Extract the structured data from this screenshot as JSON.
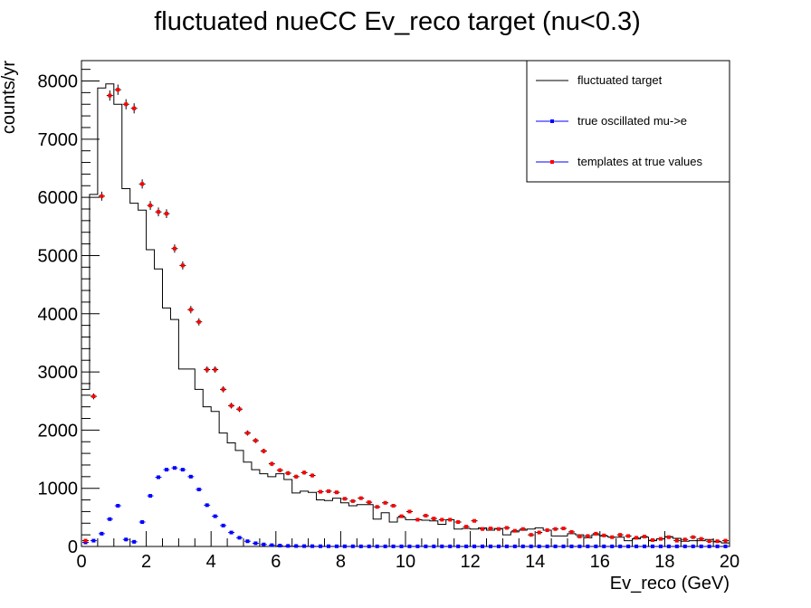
{
  "chart_data": {
    "type": "histogram",
    "title": "fluctuated nueCC Ev_reco target (nu<0.3)",
    "xlabel": "Ev_reco (GeV)",
    "ylabel": "counts/yr",
    "xlim": [
      0,
      20
    ],
    "ylim": [
      0,
      8350
    ],
    "bin_width": 0.25,
    "x_ticks": [
      "0",
      "2",
      "4",
      "6",
      "8",
      "10",
      "12",
      "14",
      "16",
      "18",
      "20"
    ],
    "y_ticks": [
      "0",
      "1000",
      "2000",
      "3000",
      "4000",
      "5000",
      "6000",
      "7000",
      "8000"
    ],
    "grid": false,
    "legend_position": "top-right",
    "series": [
      {
        "name": "fluctuated target",
        "style": "step",
        "color": "#000000",
        "values": [
          2700,
          6050,
          7880,
          7950,
          7600,
          6150,
          5900,
          5780,
          5100,
          4770,
          4100,
          3900,
          3050,
          3050,
          2700,
          2400,
          2320,
          1950,
          1780,
          1650,
          1450,
          1320,
          1250,
          1200,
          1250,
          1150,
          920,
          950,
          930,
          800,
          790,
          830,
          750,
          700,
          720,
          720,
          470,
          580,
          420,
          500,
          460,
          460,
          450,
          440,
          380,
          460,
          300,
          310,
          300,
          320,
          280,
          310,
          200,
          250,
          280,
          300,
          320,
          280,
          180,
          180,
          220,
          200,
          150,
          200,
          180,
          160,
          160,
          100,
          130,
          160,
          100,
          130,
          170,
          140,
          90,
          100,
          100,
          120,
          80,
          60
        ]
      },
      {
        "name": "true oscillated mu->e",
        "style": "points",
        "color": "#0000ff",
        "values": [
          70,
          100,
          220,
          470,
          700,
          120,
          80,
          420,
          870,
          1190,
          1320,
          1350,
          1320,
          1200,
          980,
          710,
          520,
          360,
          240,
          150,
          90,
          55,
          35,
          22,
          15,
          10,
          8,
          6,
          5,
          4,
          4,
          3,
          3,
          3,
          2,
          2,
          2,
          2,
          2,
          2,
          2,
          2,
          2,
          2,
          2,
          2,
          2,
          2,
          2,
          2,
          2,
          2,
          2,
          2,
          2,
          2,
          2,
          2,
          2,
          2,
          2,
          2,
          2,
          2,
          2,
          2,
          2,
          2,
          2,
          2,
          2,
          2,
          2,
          2,
          2,
          2,
          2,
          2,
          2,
          2
        ]
      },
      {
        "name": "templates at true values",
        "style": "points",
        "color": "#ff0000",
        "values": [
          100,
          2580,
          6020,
          7750,
          7850,
          7600,
          7530,
          6230,
          5860,
          5750,
          5720,
          5120,
          4830,
          4070,
          3860,
          3040,
          3040,
          2700,
          2420,
          2360,
          1950,
          1820,
          1640,
          1420,
          1310,
          1260,
          1200,
          1270,
          1220,
          940,
          950,
          930,
          820,
          780,
          830,
          760,
          680,
          750,
          700,
          520,
          600,
          460,
          530,
          480,
          460,
          460,
          420,
          340,
          440,
          300,
          310,
          300,
          320,
          270,
          300,
          200,
          240,
          280,
          300,
          310,
          250,
          170,
          180,
          220,
          190,
          160,
          200,
          180,
          150,
          170,
          110,
          130,
          160,
          100,
          120,
          160,
          130,
          90,
          90,
          100
        ]
      }
    ]
  }
}
